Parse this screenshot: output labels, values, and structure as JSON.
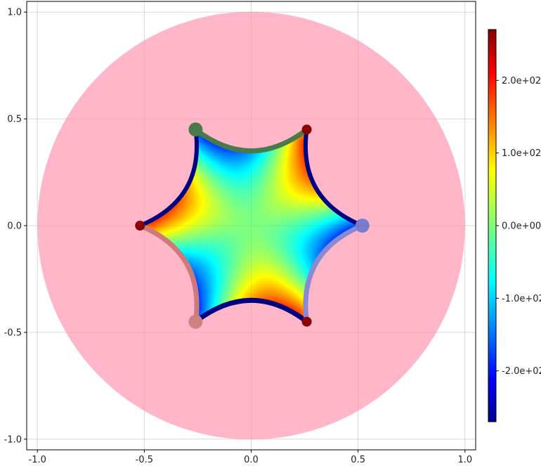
{
  "chart_data": {
    "type": "heatmap",
    "title": "",
    "xlabel": "",
    "ylabel": "",
    "xlim": [
      -1.05,
      1.05
    ],
    "ylim": [
      -1.05,
      1.05
    ],
    "x_ticks": [
      -1.0,
      -0.5,
      0.0,
      0.5,
      1.0
    ],
    "x_tick_labels": [
      "-1.0",
      "-0.5",
      "0.0",
      "0.5",
      "1.0"
    ],
    "y_ticks": [
      -1.0,
      -0.5,
      0.0,
      0.5,
      1.0
    ],
    "y_tick_labels": [
      "-1.0",
      "-0.5",
      "0.0",
      "0.5",
      "1.0"
    ],
    "grid": true,
    "disk": {
      "center": [
        0.0,
        0.0
      ],
      "radius": 1.0,
      "color": "#ffb6c8"
    },
    "colormap": "jet",
    "colorbar": {
      "range": [
        -270,
        270
      ],
      "ticks": [
        -200,
        -100,
        0,
        100,
        200
      ],
      "tick_labels": [
        "-2.0e+02",
        "-1.0e+02",
        "0.0e+00",
        "1.0e+02",
        "2.0e+02"
      ],
      "placement": "right"
    },
    "heatmap": {
      "mode": "3-fold",
      "amplitude": 270
    },
    "polygon": {
      "vertices": [
        [
          0.52,
          0.0
        ],
        [
          0.26,
          0.45
        ],
        [
          -0.26,
          0.45
        ],
        [
          -0.52,
          0.0
        ],
        [
          -0.26,
          -0.45
        ],
        [
          0.26,
          -0.45
        ]
      ],
      "edge_sag": 0.1,
      "edge_color": "#000080",
      "highlighted_edges": [
        {
          "from": 1,
          "to": 2,
          "color": "#4a7a4a"
        },
        {
          "from": 3,
          "to": 4,
          "color": "#cf7a7a"
        },
        {
          "from": 4,
          "to": 5,
          "color": "#000080"
        },
        {
          "from": 5,
          "to": 0,
          "color": "#8a8ad2"
        }
      ]
    },
    "markers": [
      {
        "x": 0.52,
        "y": 0.0,
        "color": "#7b7bd0",
        "size": "large"
      },
      {
        "x": 0.26,
        "y": 0.45,
        "color": "#8b0000",
        "size": "small"
      },
      {
        "x": -0.26,
        "y": 0.45,
        "color": "#4a7a4a",
        "size": "large"
      },
      {
        "x": -0.52,
        "y": 0.0,
        "color": "#8b0000",
        "size": "small"
      },
      {
        "x": -0.26,
        "y": -0.45,
        "color": "#d08080",
        "size": "large"
      },
      {
        "x": 0.26,
        "y": -0.45,
        "color": "#8b0000",
        "size": "small"
      }
    ]
  }
}
